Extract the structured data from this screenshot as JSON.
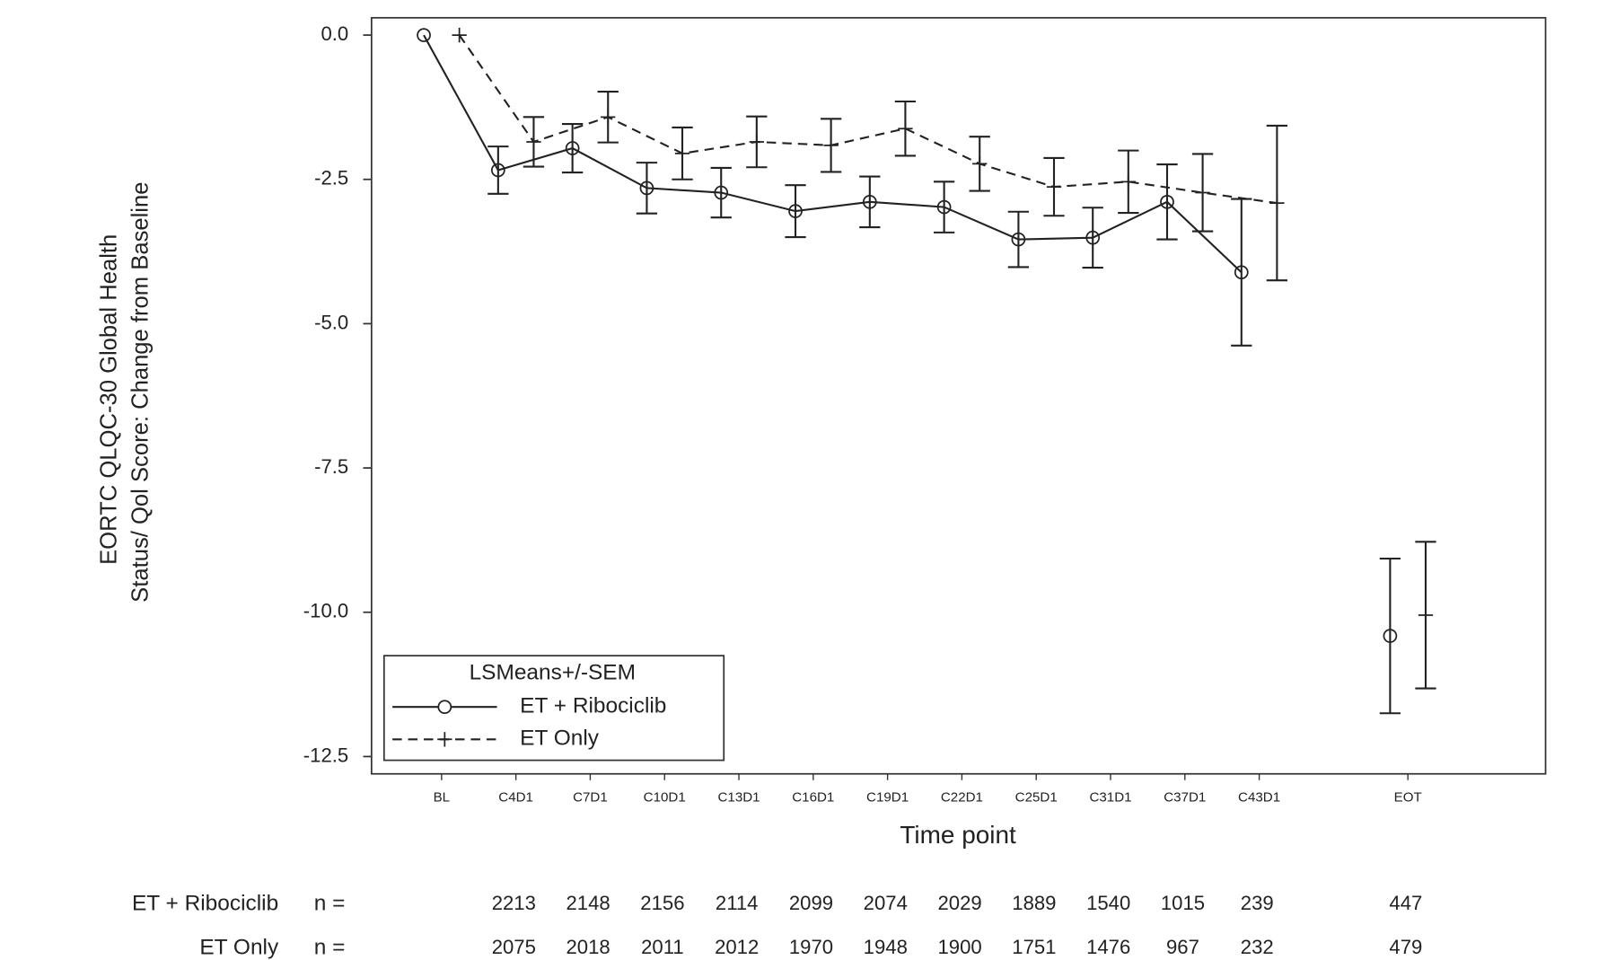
{
  "chart_data": {
    "type": "line",
    "y_label": [
      "EORTC QLQC-30 Global Health",
      "Status/ Qol Score: Change from Baseline"
    ],
    "x_label": "Time point",
    "categories": [
      "BL",
      "C4D1",
      "C7D1",
      "C10D1",
      "C13D1",
      "C16D1",
      "C19D1",
      "C22D1",
      "C25D1",
      "C31D1",
      "C37D1",
      "C43D1",
      null,
      "EOT"
    ],
    "ylim": [
      -12.8,
      0.3
    ],
    "yticks": [
      {
        "value": 0,
        "label": "0.0"
      },
      -2.5,
      {
        "value": -5,
        "label": "-5.0"
      },
      -7.5,
      {
        "value": -10,
        "label": "-10.0"
      },
      -12.5
    ],
    "legend_title": "LSMeans+/-SEM",
    "legend_position": "lower left",
    "series": [
      {
        "name": "ET + Ribociclib",
        "color": "#222222",
        "line_style": "solid",
        "marker": "circle",
        "values": [
          0,
          -2.34,
          -1.96,
          -2.65,
          -2.73,
          -3.05,
          -2.89,
          -2.98,
          -3.54,
          -3.51,
          -2.89,
          -4.11,
          null,
          -10.41
        ],
        "errors": [
          null,
          0.41,
          0.42,
          0.44,
          0.43,
          0.45,
          0.44,
          0.44,
          0.48,
          0.52,
          0.65,
          1.27,
          null,
          1.34
        ]
      },
      {
        "name": "ET Only",
        "color": "#222222",
        "line_style": "dashed",
        "marker": "plus",
        "values": [
          0,
          -1.85,
          -1.42,
          -2.05,
          -1.85,
          -1.91,
          -1.62,
          -2.23,
          -2.63,
          -2.54,
          -2.73,
          -2.91,
          null,
          -10.05
        ],
        "errors": [
          null,
          0.43,
          0.44,
          0.45,
          0.44,
          0.46,
          0.47,
          0.47,
          0.5,
          0.54,
          0.67,
          1.34,
          null,
          1.27
        ]
      }
    ],
    "n_table": {
      "n_label": "n =",
      "rows": [
        {
          "name": "ET + Ribociclib",
          "counts": [
            null,
            2213,
            2148,
            2156,
            2114,
            2099,
            2074,
            2029,
            1889,
            1540,
            1015,
            239,
            null,
            447
          ]
        },
        {
          "name": "ET Only",
          "counts": [
            null,
            2075,
            2018,
            2011,
            2012,
            1970,
            1948,
            1900,
            1751,
            1476,
            967,
            232,
            null,
            479
          ]
        }
      ]
    }
  }
}
